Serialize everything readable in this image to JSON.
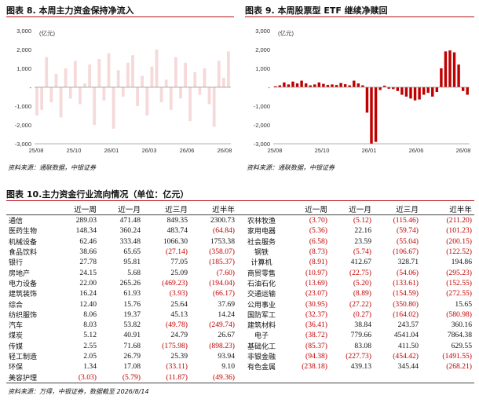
{
  "figure8": {
    "title": "图表 8. 本周主力资金保持净流入",
    "unit": "(亿元)",
    "source": "资料来源：通联数据，中银证券",
    "chart_data": {
      "type": "bar",
      "title": "",
      "ylim": [
        -3000,
        3000
      ],
      "yticks": [
        "3,000",
        "2,000",
        "1,000",
        "-",
        "-1,000",
        "-2,000",
        "-3,000"
      ],
      "xticks": [
        "25/08",
        "25/10",
        "26/01",
        "26/03",
        "26/06",
        "26/08"
      ],
      "values": [
        -1500,
        -1200,
        1600,
        -800,
        700,
        -1600,
        1000,
        -600,
        1400,
        -900,
        200,
        1200,
        -2000,
        1500,
        -700,
        1800,
        -2200,
        900,
        -500,
        1300,
        1700,
        -1000,
        600,
        -1500,
        1100,
        2000,
        -800,
        400,
        -1200,
        1600,
        -600,
        1300,
        -1800,
        800,
        -400,
        1000,
        -900,
        -2100,
        1400,
        500,
        1900
      ]
    }
  },
  "figure9": {
    "title": "图表 9. 本周股票型 ETF 继续净赎回",
    "unit": "(亿元)",
    "source": "资料来源：通联数据，中银证券",
    "chart_data": {
      "type": "bar",
      "title": "",
      "ylim": [
        -3000,
        3000
      ],
      "yticks": [
        "3,000",
        "2,000",
        "1,000",
        "-",
        "-1,000",
        "-2,000",
        "-3,000"
      ],
      "xticks": [
        "25/08",
        "25/10",
        "26/01",
        "26/06",
        "26/08"
      ],
      "values": [
        50,
        100,
        250,
        150,
        300,
        200,
        350,
        200,
        100,
        150,
        250,
        180,
        120,
        150,
        120,
        220,
        160,
        100,
        350,
        200,
        100,
        -1350,
        -3000,
        -2900,
        -150,
        80,
        -80,
        -100,
        -200,
        -400,
        -500,
        -600,
        -700,
        -650,
        -400,
        -300,
        -500,
        -250,
        1000,
        1900,
        1950,
        1850,
        1200,
        -200,
        -400
      ]
    }
  },
  "table": {
    "title": "图表 10.主力资金行业流向情况（单位：亿元）",
    "source": "资料来源：万得，中银证券，数据截至 2026/8/14",
    "headers": [
      "",
      "近一周",
      "近一月",
      "近三月",
      "近半年",
      "",
      "近一周",
      "近一月",
      "近三月",
      "近半年"
    ],
    "rows": [
      [
        "通信",
        "289.03",
        "471.48",
        "849.35",
        "2300.73",
        "农林牧渔",
        "(3.70)",
        "(5.12)",
        "(115.46)",
        "(211.20)"
      ],
      [
        "医药生物",
        "148.34",
        "360.24",
        "483.74",
        "(64.84)",
        "家用电器",
        "(5.36)",
        "22.16",
        "(59.74)",
        "(101.23)"
      ],
      [
        "机械设备",
        "62.46",
        "333.48",
        "1066.30",
        "1753.38",
        "社会服务",
        "(6.58)",
        "23.59",
        "(55.04)",
        "(200.15)"
      ],
      [
        "食品饮料",
        "38.66",
        "65.65",
        "(27.14)",
        "(358.07)",
        "钢铁",
        "(8.73)",
        "(5.74)",
        "(106.67)",
        "(122.52)"
      ],
      [
        "银行",
        "27.78",
        "95.81",
        "77.05",
        "(185.37)",
        "计算机",
        "(8.91)",
        "412.67",
        "328.71",
        "194.86"
      ],
      [
        "房地产",
        "24.15",
        "5.68",
        "25.09",
        "(7.60)",
        "商贸零售",
        "(10.97)",
        "(22.75)",
        "(54.06)",
        "(295.23)"
      ],
      [
        "电力设备",
        "22.00",
        "265.26",
        "(469.23)",
        "(194.04)",
        "石油石化",
        "(13.69)",
        "(5.20)",
        "(133.61)",
        "(152.55)"
      ],
      [
        "建筑装饰",
        "16.24",
        "61.93",
        "(3.93)",
        "(66.17)",
        "交通运输",
        "(23.07)",
        "(8.89)",
        "(154.59)",
        "(272.55)"
      ],
      [
        "综合",
        "12.40",
        "15.76",
        "25.64",
        "37.69",
        "公用事业",
        "(30.95)",
        "(27.22)",
        "(350.80)",
        "15.65"
      ],
      [
        "纺织服饰",
        "8.06",
        "19.37",
        "45.13",
        "14.24",
        "国防军工",
        "(32.37)",
        "(0.27)",
        "(164.02)",
        "(580.98)"
      ],
      [
        "汽车",
        "8.03",
        "53.82",
        "(49.78)",
        "(249.74)",
        "建筑材料",
        "(36.41)",
        "38.84",
        "243.57",
        "360.16"
      ],
      [
        "煤炭",
        "5.12",
        "40.91",
        "24.79",
        "26.67",
        "电子",
        "(38.72)",
        "779.66",
        "4541.04",
        "7864.38"
      ],
      [
        "传媒",
        "2.55",
        "71.68",
        "(175.98)",
        "(898.23)",
        "基础化工",
        "(85.37)",
        "83.08",
        "411.50",
        "629.55"
      ],
      [
        "轻工制造",
        "2.05",
        "26.79",
        "25.39",
        "93.94",
        "非银金融",
        "(94.38)",
        "(227.73)",
        "(454.42)",
        "(1491.55)"
      ],
      [
        "环保",
        "1.34",
        "17.08",
        "(33.11)",
        "9.10",
        "有色金属",
        "(238.18)",
        "439.13",
        "345.44",
        "(268.21)"
      ],
      [
        "美容护理",
        "(3.03)",
        "(5.79)",
        "(11.87)",
        "(49.36)",
        "",
        "",
        "",
        "",
        ""
      ]
    ]
  },
  "colors": {
    "accent": "#b5121b",
    "bar8": "#f6d9d9",
    "bar9": "#c00000",
    "negative_text": "#c00000"
  }
}
